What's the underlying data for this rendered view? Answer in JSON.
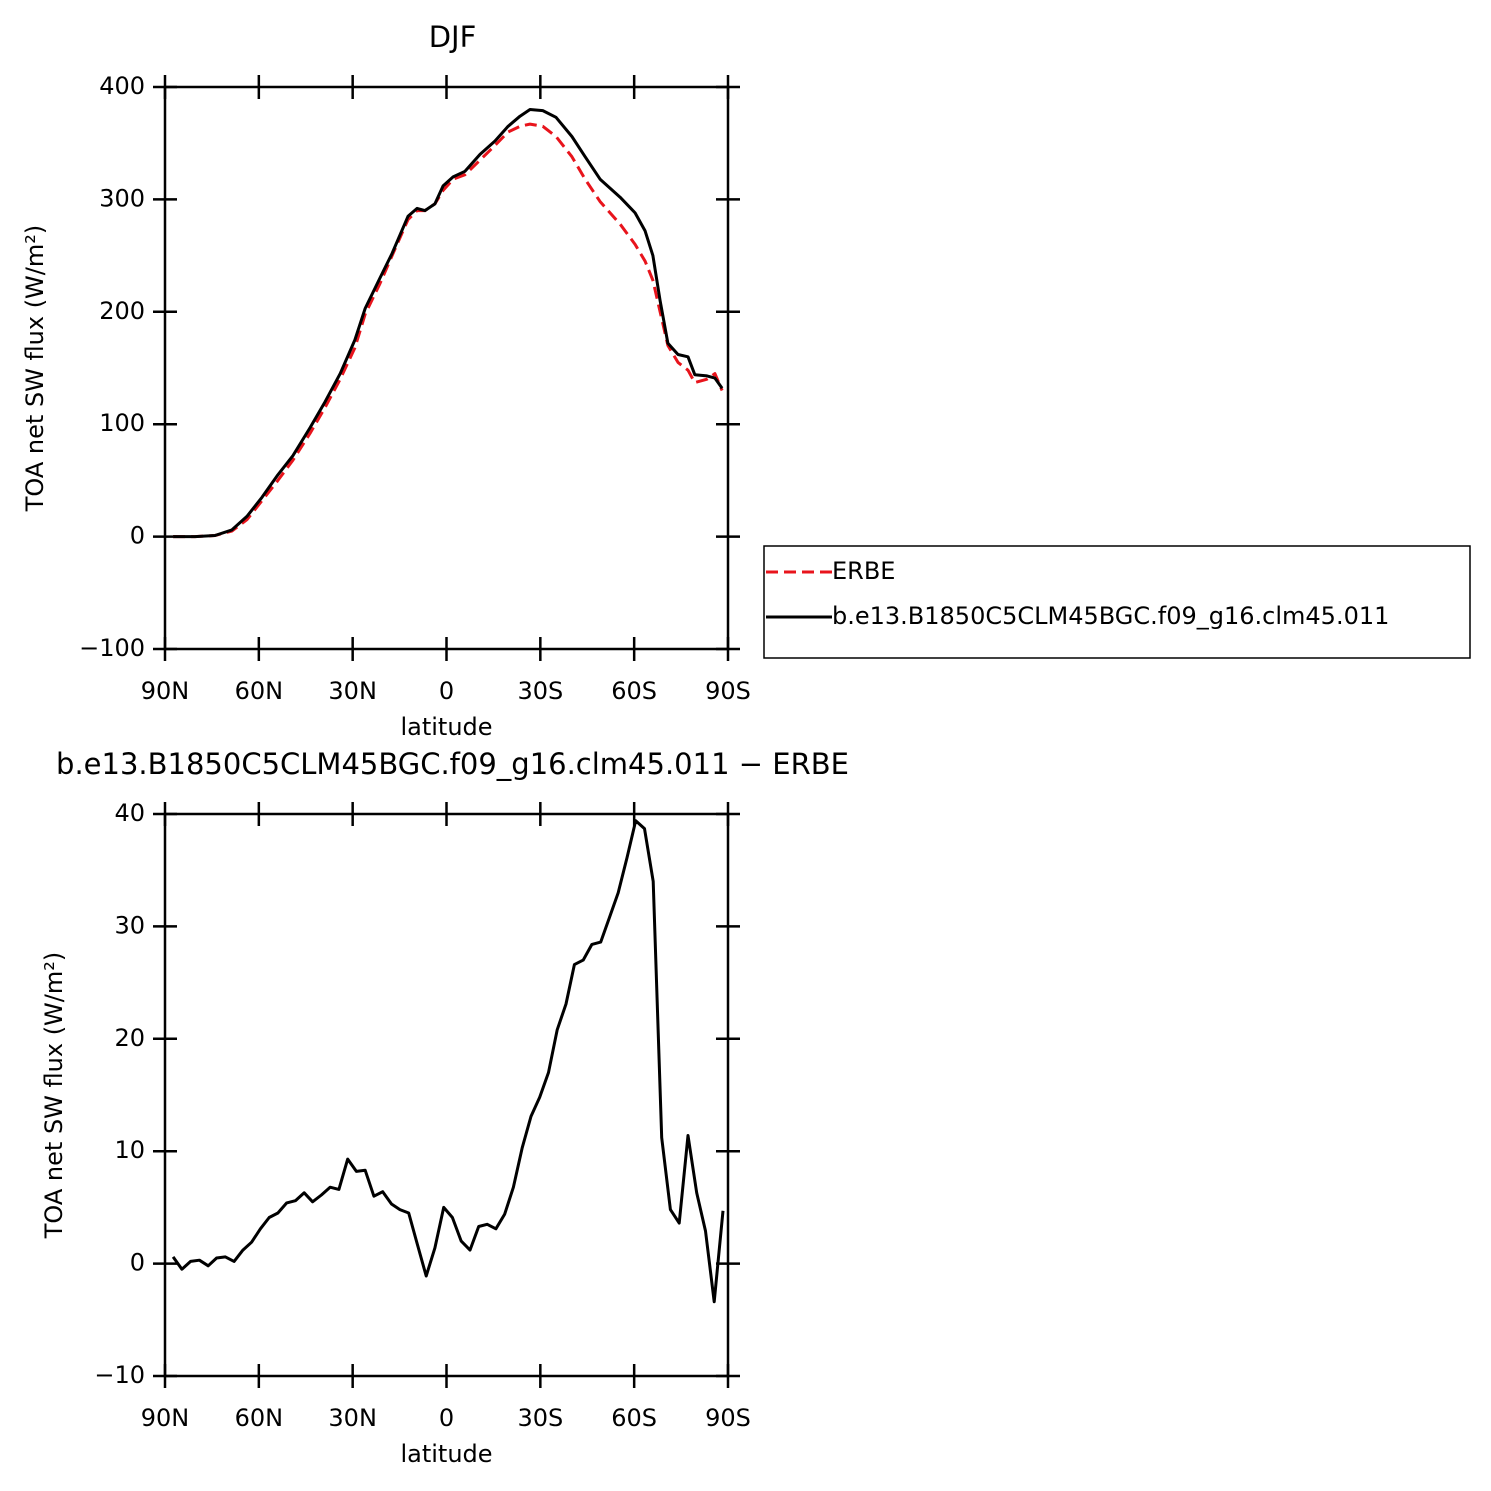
{
  "chart_data": [
    {
      "type": "line",
      "title": "DJF",
      "xlabel": "latitude",
      "ylabel": "TOA net SW flux (W/m²)",
      "x": [
        87.4,
        80.4,
        74,
        68.6,
        63.8,
        59,
        53.9,
        49.1,
        43.6,
        38.8,
        34,
        29.3,
        26,
        21.3,
        17.4,
        12.3,
        9.4,
        6.9,
        3.7,
        1.1,
        -2.1,
        -5.9,
        -10.7,
        -15.5,
        -19.7,
        -23.5,
        -26.7,
        -30.8,
        -35,
        -40.1,
        -44.3,
        -49.1,
        -55.5,
        -60.3,
        -63.5,
        -66,
        -68.3,
        -70.8,
        -74,
        -77.2,
        -79.4,
        -83.3,
        -85.8,
        -88.1
      ],
      "series": [
        {
          "name": "ERBE",
          "color": "#e8141c",
          "dash": true,
          "values": [
            0,
            0,
            1,
            5,
            15,
            32,
            50,
            68,
            92,
            115,
            140,
            168,
            198,
            225,
            250,
            282,
            290,
            290,
            296,
            308,
            318,
            322,
            335,
            348,
            360,
            365,
            367,
            365,
            356,
            338,
            318,
            298,
            278,
            260,
            245,
            228,
            200,
            170,
            155,
            148,
            137,
            140,
            145,
            130
          ]
        },
        {
          "name": "b.e13.B1850C5CLM45BGC.f09_g16.clm45.011",
          "color": "#000000",
          "dash": false,
          "values": [
            0,
            0,
            1,
            6,
            18,
            35,
            55,
            72,
            97,
            120,
            145,
            175,
            203,
            230,
            252,
            285,
            292,
            290,
            296,
            312,
            320,
            325,
            340,
            352,
            365,
            374,
            380,
            379,
            373,
            356,
            338,
            318,
            302,
            288,
            272,
            250,
            210,
            172,
            162,
            160,
            144,
            143,
            141,
            132
          ]
        }
      ],
      "xlim": [
        90,
        -90
      ],
      "xticks": [
        {
          "value": 90,
          "label": "90N"
        },
        {
          "value": 60,
          "label": "60N"
        },
        {
          "value": 30,
          "label": "30N"
        },
        0,
        {
          "value": -30,
          "label": "30S"
        },
        {
          "value": -60,
          "label": "60S"
        },
        {
          "value": -90,
          "label": "90S"
        }
      ],
      "ylim": [
        -100,
        400
      ],
      "yticks": [
        {
          "value": -100,
          "label": "−100"
        },
        0,
        100,
        200,
        300,
        400
      ],
      "legend": "right"
    },
    {
      "type": "line",
      "title": "b.e13.B1850C5CLM45BGC.f09_g16.clm45.011 − ERBE",
      "xlabel": "latitude",
      "ylabel": "TOA net SW flux (W/m²)",
      "x": [
        87.4,
        84.6,
        81.8,
        79.0,
        76.2,
        73.5,
        70.7,
        67.9,
        65.1,
        62.3,
        59.5,
        56.7,
        53.9,
        51.1,
        48.3,
        45.5,
        42.8,
        40.0,
        37.2,
        34.4,
        31.6,
        28.8,
        26.0,
        23.2,
        20.4,
        17.6,
        14.9,
        12.1,
        9.3,
        6.5,
        3.7,
        0.9,
        -1.9,
        -4.7,
        -7.5,
        -10.3,
        -13.0,
        -15.8,
        -18.6,
        -21.4,
        -24.2,
        -27.0,
        -29.8,
        -32.6,
        -35.4,
        -38.2,
        -40.9,
        -43.7,
        -46.5,
        -49.3,
        -52.1,
        -54.9,
        -57.7,
        -60.5,
        -63.3,
        -66.1,
        -68.8,
        -71.6,
        -74.4,
        -77.2,
        -80.0,
        -82.8,
        -85.6,
        -88.4
      ],
      "series": [
        {
          "name": null,
          "color": "#000000",
          "dash": false,
          "values": [
            0.6,
            -0.5,
            0.2,
            0.3,
            -0.2,
            0.5,
            0.6,
            0.2,
            1.2,
            1.9,
            3.1,
            4.1,
            4.5,
            5.4,
            5.6,
            6.3,
            5.5,
            6.1,
            6.8,
            6.6,
            9.3,
            8.2,
            8.3,
            6.0,
            6.4,
            5.3,
            4.8,
            4.5,
            1.7,
            -1.1,
            1.4,
            5.0,
            4.1,
            2.0,
            1.2,
            3.3,
            3.5,
            3.1,
            4.4,
            6.8,
            10.3,
            13.1,
            14.8,
            17.0,
            20.8,
            23.1,
            26.6,
            27.0,
            28.4,
            28.6,
            30.8,
            33.0,
            36.1,
            39.4,
            38.7,
            34.0,
            11.2,
            4.8,
            3.6,
            11.4,
            6.3,
            2.9,
            -3.4,
            4.7
          ]
        }
      ],
      "xlim": [
        90,
        -90
      ],
      "xticks": [
        {
          "value": 90,
          "label": "90N"
        },
        {
          "value": 60,
          "label": "60N"
        },
        {
          "value": 30,
          "label": "30N"
        },
        0,
        {
          "value": -30,
          "label": "30S"
        },
        {
          "value": -60,
          "label": "60S"
        },
        {
          "value": -90,
          "label": "90S"
        }
      ],
      "ylim": [
        -10,
        40
      ],
      "yticks": [
        {
          "value": -10,
          "label": "−10"
        },
        0,
        10,
        20,
        30,
        40
      ]
    }
  ]
}
